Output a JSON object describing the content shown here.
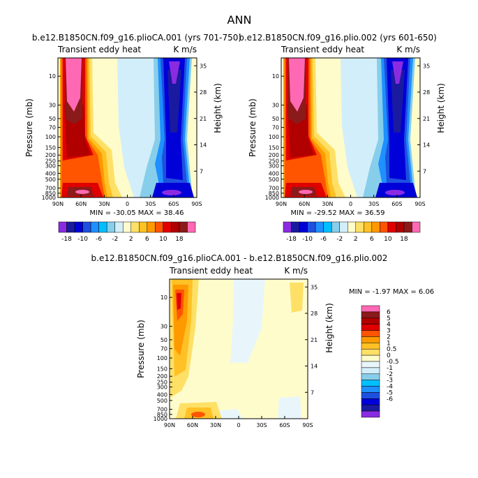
{
  "page_title": "ANN",
  "colors": {
    "top_levels": [
      "#8a2be2",
      "#1a1aa0",
      "#0000d8",
      "#1e50e0",
      "#1e90ff",
      "#00bfff",
      "#87ceeb",
      "#d2eefa",
      "#fffccc",
      "#ffe066",
      "#ffc125",
      "#ff9900",
      "#ff5500",
      "#e00000",
      "#b00000",
      "#8b1a1a",
      "#ff69b4"
    ],
    "diff_levels": [
      "#8a2be2",
      "#1a1aa0",
      "#0000d8",
      "#1e50e0",
      "#1e90ff",
      "#00bfff",
      "#87ceeb",
      "#d2eefa",
      "#e8f6fc",
      "#fffccc",
      "#ffe066",
      "#ffc125",
      "#ff9900",
      "#ff5500",
      "#e00000",
      "#b00000",
      "#8b1a1a",
      "#ff69b4"
    ]
  },
  "chart_data": [
    {
      "type": "contour",
      "title": "b.e12.B1850CN.f09_g16.plioCA.001 (yrs 701-750)",
      "left_label": "Transient eddy heat",
      "right_label": "K m/s",
      "ylabel": "Pressure (mb)",
      "y2label": "Height (km)",
      "x_ticks": [
        "90N",
        "60N",
        "30N",
        "0",
        "30S",
        "60S",
        "90S"
      ],
      "y_ticks": [
        "10",
        "30",
        "50",
        "70",
        "100",
        "150",
        "200",
        "250",
        "300",
        "400",
        "500",
        "700",
        "850",
        "1000"
      ],
      "y2_ticks": [
        "35",
        "28",
        "21",
        "14",
        "7"
      ],
      "stats": "MIN = -30.05   MAX =  38.46",
      "cb_labels": [
        "-18",
        "-10",
        "-6",
        "-2",
        "2",
        "6",
        "10",
        "18"
      ]
    },
    {
      "type": "contour",
      "title": "b.e12.B1850CN.f09_g16.plio.002 (yrs 601-650)",
      "left_label": "Transient eddy heat",
      "right_label": "K m/s",
      "ylabel": "Pressure (mb)",
      "y2label": "Height (km)",
      "x_ticks": [
        "90N",
        "60N",
        "30N",
        "0",
        "30S",
        "60S",
        "90S"
      ],
      "y_ticks": [
        "10",
        "30",
        "50",
        "70",
        "100",
        "150",
        "200",
        "250",
        "300",
        "400",
        "500",
        "700",
        "850",
        "1000"
      ],
      "y2_ticks": [
        "35",
        "28",
        "21",
        "14",
        "7"
      ],
      "stats": "MIN = -29.52   MAX =  36.59",
      "cb_labels": [
        "-18",
        "-10",
        "-6",
        "-2",
        "2",
        "6",
        "10",
        "18"
      ]
    },
    {
      "type": "contour",
      "title": "b.e12.B1850CN.f09_g16.plioCA.001 - b.e12.B1850CN.f09_g16.plio.002",
      "left_label": "Transient eddy heat",
      "right_label": "K m/s",
      "ylabel": "Pressure (mb)",
      "y2label": "Height (km)",
      "x_ticks": [
        "90N",
        "60N",
        "30N",
        "0",
        "30S",
        "60S",
        "90S"
      ],
      "y_ticks": [
        "10",
        "30",
        "50",
        "70",
        "100",
        "150",
        "200",
        "250",
        "300",
        "400",
        "500",
        "700",
        "850",
        "1000"
      ],
      "y2_ticks": [
        "35",
        "28",
        "21",
        "14",
        "7"
      ],
      "stats": "MIN =  -1.97   MAX =   6.06",
      "cb_labels": [
        "6",
        "5",
        "4",
        "3",
        "2",
        "1",
        "0.5",
        "0",
        "-0.5",
        "-1",
        "-2",
        "-3",
        "-4",
        "-5",
        "-6"
      ]
    }
  ]
}
